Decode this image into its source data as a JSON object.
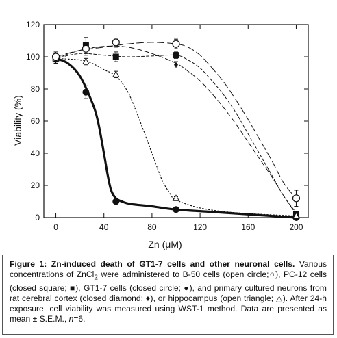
{
  "chart_data": {
    "type": "line",
    "xlabel": "Zn (μM)",
    "ylabel": "Viability (%)",
    "xlim": [
      -10,
      210
    ],
    "ylim": [
      0,
      120
    ],
    "xticks": [
      0,
      40,
      80,
      120,
      160,
      200
    ],
    "yticks": [
      0,
      20,
      40,
      60,
      80,
      100,
      120
    ],
    "grid": false,
    "legend": "none",
    "series": [
      {
        "marker": "open-circle",
        "line": "long-dash",
        "points": [
          {
            "x": 0,
            "y": 100,
            "err": 3
          },
          {
            "x": 25,
            "y": 105,
            "err": 4
          },
          {
            "x": 50,
            "y": 109,
            "err": 2
          },
          {
            "x": 100,
            "y": 108,
            "err": 3
          },
          {
            "x": 200,
            "y": 12,
            "err": 5
          }
        ],
        "curve": [
          [
            0,
            100
          ],
          [
            20,
            104
          ],
          [
            40,
            106
          ],
          [
            60,
            108
          ],
          [
            80,
            109
          ],
          [
            100,
            108
          ],
          [
            110,
            106
          ],
          [
            120,
            101
          ],
          [
            130,
            93
          ],
          [
            140,
            84
          ],
          [
            150,
            73
          ],
          [
            160,
            61
          ],
          [
            170,
            48
          ],
          [
            180,
            35
          ],
          [
            190,
            21
          ],
          [
            200,
            12
          ]
        ]
      },
      {
        "marker": "closed-square",
        "line": "short-dash",
        "points": [
          {
            "x": 0,
            "y": 99,
            "err": 3
          },
          {
            "x": 25,
            "y": 107,
            "err": 5
          },
          {
            "x": 50,
            "y": 100,
            "err": 3
          },
          {
            "x": 100,
            "y": 101,
            "err": 2
          },
          {
            "x": 200,
            "y": 2,
            "err": 2
          }
        ],
        "curve": [
          [
            0,
            99
          ],
          [
            20,
            102
          ],
          [
            40,
            101
          ],
          [
            60,
            100
          ],
          [
            80,
            100.5
          ],
          [
            100,
            101
          ],
          [
            110,
            98
          ],
          [
            120,
            93
          ],
          [
            130,
            85
          ],
          [
            140,
            76
          ],
          [
            150,
            65
          ],
          [
            160,
            52
          ],
          [
            170,
            39
          ],
          [
            180,
            26
          ],
          [
            190,
            13
          ],
          [
            200,
            3
          ]
        ]
      },
      {
        "marker": "closed-circle",
        "line": "thick-solid",
        "points": [
          {
            "x": 0,
            "y": 99,
            "err": 3
          },
          {
            "x": 25,
            "y": 78,
            "err": 4
          },
          {
            "x": 50,
            "y": 10,
            "err": 1
          },
          {
            "x": 100,
            "y": 5,
            "err": 1
          },
          {
            "x": 200,
            "y": 0,
            "err": 1
          }
        ],
        "curve": [
          [
            0,
            99
          ],
          [
            10,
            96
          ],
          [
            20,
            88
          ],
          [
            30,
            72
          ],
          [
            35,
            60
          ],
          [
            40,
            40
          ],
          [
            43,
            27
          ],
          [
            46,
            17
          ],
          [
            50,
            12
          ],
          [
            55,
            10
          ],
          [
            62,
            8.5
          ],
          [
            80,
            7
          ],
          [
            100,
            5
          ],
          [
            130,
            3.5
          ],
          [
            160,
            2
          ],
          [
            200,
            0
          ]
        ]
      },
      {
        "marker": "closed-diamond",
        "line": "dash",
        "points": [
          {
            "x": 0,
            "y": 99,
            "err": 2
          },
          {
            "x": 25,
            "y": 104,
            "err": 3
          },
          {
            "x": 50,
            "y": 108,
            "err": 2
          },
          {
            "x": 100,
            "y": 95,
            "err": 2
          },
          {
            "x": 200,
            "y": 1,
            "err": 1
          }
        ],
        "curve": [
          [
            0,
            99
          ],
          [
            20,
            104
          ],
          [
            40,
            106.5
          ],
          [
            60,
            106
          ],
          [
            80,
            102
          ],
          [
            100,
            96
          ],
          [
            110,
            91
          ],
          [
            120,
            85
          ],
          [
            130,
            77
          ],
          [
            140,
            68
          ],
          [
            150,
            58
          ],
          [
            160,
            47
          ],
          [
            170,
            36
          ],
          [
            180,
            25
          ],
          [
            190,
            13
          ],
          [
            200,
            2
          ]
        ]
      },
      {
        "marker": "open-triangle",
        "line": "dotted",
        "points": [
          {
            "x": 0,
            "y": 99,
            "err": 2
          },
          {
            "x": 25,
            "y": 97,
            "err": 2
          },
          {
            "x": 50,
            "y": 89,
            "err": 2
          },
          {
            "x": 100,
            "y": 12,
            "err": 1
          },
          {
            "x": 200,
            "y": 1,
            "err": 1
          }
        ],
        "curve": [
          [
            0,
            99
          ],
          [
            20,
            98
          ],
          [
            30,
            96
          ],
          [
            40,
            92
          ],
          [
            50,
            88
          ],
          [
            60,
            78
          ],
          [
            70,
            60
          ],
          [
            80,
            40
          ],
          [
            88,
            24
          ],
          [
            95,
            15
          ],
          [
            100,
            11
          ],
          [
            120,
            6
          ],
          [
            150,
            3
          ],
          [
            200,
            1
          ]
        ]
      }
    ]
  },
  "caption": {
    "label": "Figure 1:",
    "title": " Zn-induced death of GT1-7 cells and other neuronal cells.",
    "p1": " Various concentrations of ZnCl",
    "sub": "2",
    "p2": " were administered to B-50 cells (open circle;○), PC-12 cells (closed square; ■), GT1-7 cells (closed circle; ●), and primary cultured neurons from rat cerebral cortex  (closed diamond; ♦), or hippocampus (open triangle; △). After 24-h exposure, cell viability was measured using WST-1 method. Data are presented as mean ± S.E.M., ",
    "n_italic": "n",
    "p3": "=6."
  }
}
